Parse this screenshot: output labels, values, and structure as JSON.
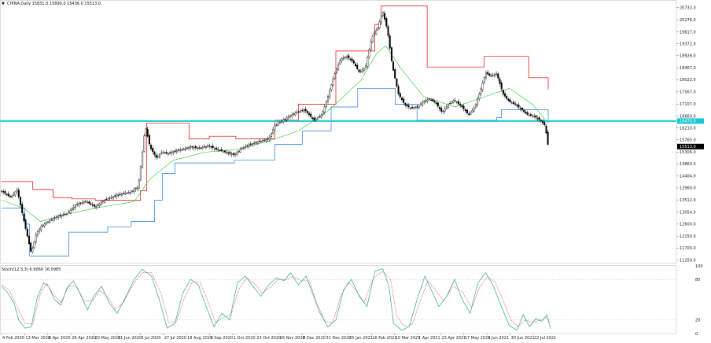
{
  "header": {
    "marker": "▼",
    "text": "CHINA.Daily 15831.0 15890.0 15436.0 15513.0"
  },
  "osc_header": "Stoch(12,3,3) 6.9066 16.0985",
  "colors": {
    "bg": "#ffffff",
    "candle": "#000000",
    "donchian_upper": "#e00000",
    "donchian_lower": "#1e7fe0",
    "ma": "#22cc22",
    "hline": "#19c8d2",
    "stoch_main": "#2aa89a",
    "stoch_signal": "#e04040",
    "price_tag_bg": "#000000",
    "hline_tag_bg": "#19c8d2"
  },
  "chart_data": [
    {
      "type": "candlestick",
      "title": "CHINA.Daily",
      "y_axis_ticks": [
        20732.0,
        20276.0,
        19817.0,
        19372.0,
        18926.0,
        18467.0,
        18022.0,
        17567.0,
        17107.0,
        16660.0,
        16210.0,
        15765.0,
        15306.0,
        14860.0,
        14404.0,
        13960.0,
        13512.0,
        13054.0,
        12600.0,
        12150.0,
        11700.0,
        11250.0
      ],
      "ylim": [
        11150,
        20900
      ],
      "hline": {
        "value": 16470.0,
        "label": "16470.0"
      },
      "last_price": {
        "value": 15513.0,
        "label": "15513.0"
      },
      "x_tick_labels": [
        "4 Feb 2020",
        "13 Mar 2020",
        "6 Apr 2020",
        "28 Apr 2020",
        "20 May 2020",
        "11 Jun 2020",
        "3 Jul 2020",
        "27 Jul 2020",
        "18 Aug 2020",
        "9 Sep 2020",
        "1 Oct 2020",
        "23 Oct 2020",
        "16 Nov 2020",
        "8 Dec 2020",
        "31 Dec 2020",
        "25 Jan 2021",
        "16 Feb 2021",
        "10 Mar 2021",
        "1 Apr 2021",
        "23 Apr 2021",
        "17 May 2021",
        "9 Jun 2021",
        "30 Jun 2021",
        "22 Jul 2021"
      ],
      "close_path": [
        [
          0,
          13850
        ],
        [
          12,
          13600
        ],
        [
          20,
          13900
        ],
        [
          28,
          12800
        ],
        [
          33,
          12150
        ],
        [
          38,
          11500
        ],
        [
          44,
          12200
        ],
        [
          50,
          12500
        ],
        [
          60,
          12700
        ],
        [
          72,
          12900
        ],
        [
          84,
          13000
        ],
        [
          96,
          13350
        ],
        [
          108,
          13450
        ],
        [
          120,
          13250
        ],
        [
          132,
          13500
        ],
        [
          148,
          13700
        ],
        [
          165,
          13800
        ],
        [
          175,
          14000
        ],
        [
          180,
          15200
        ],
        [
          184,
          16300
        ],
        [
          190,
          15500
        ],
        [
          198,
          15100
        ],
        [
          205,
          15300
        ],
        [
          213,
          15250
        ],
        [
          222,
          15350
        ],
        [
          232,
          15400
        ],
        [
          242,
          15500
        ],
        [
          254,
          15450
        ],
        [
          265,
          15550
        ],
        [
          276,
          15400
        ],
        [
          287,
          15300
        ],
        [
          298,
          15200
        ],
        [
          308,
          15450
        ],
        [
          318,
          15600
        ],
        [
          330,
          15700
        ],
        [
          342,
          15800
        ],
        [
          350,
          16300
        ],
        [
          358,
          16450
        ],
        [
          368,
          16650
        ],
        [
          378,
          16800
        ],
        [
          388,
          16900
        ],
        [
          400,
          16500
        ],
        [
          410,
          16700
        ],
        [
          418,
          17400
        ],
        [
          426,
          18200
        ],
        [
          434,
          18800
        ],
        [
          442,
          18900
        ],
        [
          450,
          18700
        ],
        [
          458,
          18300
        ],
        [
          466,
          18500
        ],
        [
          474,
          19600
        ],
        [
          482,
          20000
        ],
        [
          488,
          20600
        ],
        [
          494,
          19900
        ],
        [
          500,
          18600
        ],
        [
          508,
          17500
        ],
        [
          516,
          17100
        ],
        [
          524,
          16950
        ],
        [
          532,
          17000
        ],
        [
          540,
          17200
        ],
        [
          548,
          17300
        ],
        [
          556,
          17150
        ],
        [
          564,
          16800
        ],
        [
          572,
          17100
        ],
        [
          580,
          17250
        ],
        [
          590,
          17000
        ],
        [
          598,
          16700
        ],
        [
          606,
          17000
        ],
        [
          614,
          17700
        ],
        [
          620,
          18300
        ],
        [
          626,
          18150
        ],
        [
          634,
          18250
        ],
        [
          642,
          17500
        ],
        [
          650,
          17200
        ],
        [
          658,
          17100
        ],
        [
          666,
          16900
        ],
        [
          674,
          16700
        ],
        [
          682,
          16650
        ],
        [
          690,
          16500
        ],
        [
          696,
          16300
        ],
        [
          700,
          15513
        ]
      ],
      "donchian_upper": [
        [
          0,
          14200
        ],
        [
          24,
          14200
        ],
        [
          40,
          13900
        ],
        [
          66,
          13600
        ],
        [
          90,
          13550
        ],
        [
          120,
          13500
        ],
        [
          178,
          13850
        ],
        [
          186,
          16400
        ],
        [
          232,
          16400
        ],
        [
          240,
          15800
        ],
        [
          266,
          15900
        ],
        [
          300,
          15800
        ],
        [
          350,
          16500
        ],
        [
          380,
          17100
        ],
        [
          412,
          17100
        ],
        [
          428,
          19100
        ],
        [
          458,
          19100
        ],
        [
          478,
          20100
        ],
        [
          486,
          20800
        ],
        [
          530,
          20800
        ],
        [
          545,
          18500
        ],
        [
          612,
          18500
        ],
        [
          618,
          18900
        ],
        [
          665,
          18900
        ],
        [
          675,
          18100
        ],
        [
          700,
          17650
        ]
      ],
      "donchian_lower": [
        [
          0,
          13200
        ],
        [
          30,
          12600
        ],
        [
          36,
          11400
        ],
        [
          80,
          11400
        ],
        [
          86,
          12300
        ],
        [
          136,
          12500
        ],
        [
          166,
          12700
        ],
        [
          196,
          13500
        ],
        [
          206,
          14500
        ],
        [
          222,
          14900
        ],
        [
          290,
          14900
        ],
        [
          298,
          15000
        ],
        [
          325,
          15000
        ],
        [
          350,
          15600
        ],
        [
          385,
          16100
        ],
        [
          422,
          17000
        ],
        [
          456,
          17700
        ],
        [
          496,
          17700
        ],
        [
          504,
          17100
        ],
        [
          532,
          16500
        ],
        [
          590,
          16500
        ],
        [
          596,
          16500
        ],
        [
          634,
          16600
        ],
        [
          640,
          16900
        ],
        [
          700,
          16400
        ]
      ],
      "ma": [
        [
          0,
          13500
        ],
        [
          28,
          13200
        ],
        [
          50,
          12700
        ],
        [
          80,
          12950
        ],
        [
          120,
          13200
        ],
        [
          170,
          13450
        ],
        [
          190,
          14300
        ],
        [
          220,
          15000
        ],
        [
          260,
          15300
        ],
        [
          300,
          15400
        ],
        [
          340,
          15700
        ],
        [
          380,
          16100
        ],
        [
          420,
          16900
        ],
        [
          460,
          18000
        ],
        [
          480,
          19000
        ],
        [
          492,
          19300
        ],
        [
          510,
          18500
        ],
        [
          540,
          17400
        ],
        [
          580,
          17000
        ],
        [
          620,
          17400
        ],
        [
          650,
          17700
        ],
        [
          680,
          17100
        ],
        [
          700,
          16400
        ]
      ]
    },
    {
      "type": "line",
      "title": "Stoch(12,3,3) 6.9066 16.0985",
      "ylim": [
        0,
        100
      ],
      "y_axis_ticks": [
        100,
        80,
        20,
        0
      ],
      "levels": [
        80,
        20
      ],
      "series": [
        {
          "name": "main",
          "points": [
            [
              0,
              70
            ],
            [
              8,
              60
            ],
            [
              16,
              45
            ],
            [
              22,
              20
            ],
            [
              30,
              8
            ],
            [
              38,
              10
            ],
            [
              46,
              55
            ],
            [
              54,
              75
            ],
            [
              60,
              70
            ],
            [
              68,
              50
            ],
            [
              76,
              42
            ],
            [
              84,
              68
            ],
            [
              92,
              78
            ],
            [
              100,
              60
            ],
            [
              110,
              35
            ],
            [
              118,
              55
            ],
            [
              128,
              70
            ],
            [
              138,
              45
            ],
            [
              148,
              30
            ],
            [
              158,
              52
            ],
            [
              170,
              80
            ],
            [
              180,
              95
            ],
            [
              192,
              85
            ],
            [
              202,
              50
            ],
            [
              212,
              8
            ],
            [
              222,
              15
            ],
            [
              232,
              60
            ],
            [
              242,
              80
            ],
            [
              252,
              72
            ],
            [
              262,
              40
            ],
            [
              272,
              10
            ],
            [
              282,
              30
            ],
            [
              292,
              20
            ],
            [
              302,
              75
            ],
            [
              312,
              85
            ],
            [
              322,
              70
            ],
            [
              332,
              55
            ],
            [
              342,
              72
            ],
            [
              352,
              82
            ],
            [
              362,
              78
            ],
            [
              370,
              90
            ],
            [
              380,
              72
            ],
            [
              390,
              85
            ],
            [
              398,
              60
            ],
            [
              408,
              30
            ],
            [
              418,
              10
            ],
            [
              428,
              20
            ],
            [
              438,
              65
            ],
            [
              448,
              80
            ],
            [
              458,
              55
            ],
            [
              468,
              40
            ],
            [
              478,
              92
            ],
            [
              488,
              96
            ],
            [
              496,
              70
            ],
            [
              502,
              15
            ],
            [
              512,
              5
            ],
            [
              522,
              10
            ],
            [
              532,
              50
            ],
            [
              542,
              85
            ],
            [
              552,
              60
            ],
            [
              560,
              40
            ],
            [
              570,
              55
            ],
            [
              580,
              80
            ],
            [
              590,
              50
            ],
            [
              600,
              30
            ],
            [
              610,
              75
            ],
            [
              620,
              90
            ],
            [
              630,
              70
            ],
            [
              640,
              40
            ],
            [
              650,
              12
            ],
            [
              660,
              5
            ],
            [
              668,
              28
            ],
            [
              676,
              10
            ],
            [
              684,
              22
            ],
            [
              692,
              18
            ],
            [
              698,
              28
            ],
            [
              703,
              7
            ]
          ]
        },
        {
          "name": "signal",
          "points": [
            [
              0,
              72
            ],
            [
              10,
              64
            ],
            [
              20,
              40
            ],
            [
              30,
              15
            ],
            [
              40,
              14
            ],
            [
              50,
              60
            ],
            [
              58,
              74
            ],
            [
              66,
              58
            ],
            [
              76,
              46
            ],
            [
              86,
              70
            ],
            [
              96,
              70
            ],
            [
              106,
              48
            ],
            [
              116,
              48
            ],
            [
              126,
              64
            ],
            [
              136,
              54
            ],
            [
              146,
              36
            ],
            [
              156,
              46
            ],
            [
              168,
              72
            ],
            [
              180,
              90
            ],
            [
              192,
              90
            ],
            [
              204,
              60
            ],
            [
              214,
              16
            ],
            [
              224,
              18
            ],
            [
              234,
              52
            ],
            [
              244,
              76
            ],
            [
              254,
              76
            ],
            [
              264,
              48
            ],
            [
              274,
              16
            ],
            [
              284,
              24
            ],
            [
              294,
              28
            ],
            [
              304,
              66
            ],
            [
              314,
              82
            ],
            [
              324,
              74
            ],
            [
              334,
              60
            ],
            [
              344,
              68
            ],
            [
              354,
              80
            ],
            [
              364,
              80
            ],
            [
              374,
              84
            ],
            [
              384,
              78
            ],
            [
              394,
              78
            ],
            [
              404,
              44
            ],
            [
              414,
              18
            ],
            [
              424,
              16
            ],
            [
              434,
              54
            ],
            [
              444,
              76
            ],
            [
              454,
              64
            ],
            [
              464,
              46
            ],
            [
              476,
              82
            ],
            [
              488,
              92
            ],
            [
              498,
              80
            ],
            [
              506,
              26
            ],
            [
              516,
              10
            ],
            [
              526,
              14
            ],
            [
              536,
              48
            ],
            [
              546,
              78
            ],
            [
              556,
              64
            ],
            [
              566,
              48
            ],
            [
              578,
              70
            ],
            [
              590,
              62
            ],
            [
              602,
              38
            ],
            [
              612,
              68
            ],
            [
              622,
              84
            ],
            [
              632,
              76
            ],
            [
              642,
              50
            ],
            [
              652,
              20
            ],
            [
              662,
              10
            ],
            [
              670,
              20
            ],
            [
              680,
              16
            ],
            [
              690,
              20
            ],
            [
              698,
              24
            ],
            [
              703,
              16
            ]
          ]
        }
      ]
    }
  ]
}
